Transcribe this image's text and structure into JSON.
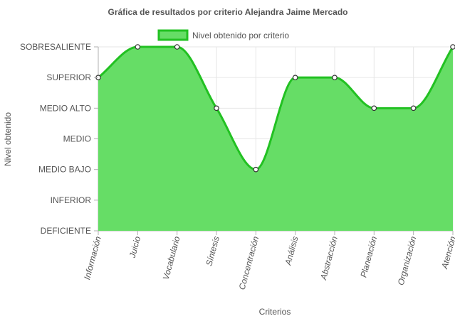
{
  "chart_data": {
    "type": "area",
    "title": "Gráfica de resultados por criterio Alejandra Jaime Mercado",
    "xlabel": "Criterios",
    "ylabel": "Nivel obtenido",
    "y_categories": [
      "DEFICIENTE",
      "INFERIOR",
      "MEDIO BAJO",
      "MEDIO",
      "MEDIO ALTO",
      "SUPERIOR",
      "SOBRESALIENTE"
    ],
    "categories": [
      "Información",
      "Juicio",
      "Vocabulario",
      "Síntesis",
      "Concentración",
      "Análisis",
      "Abstracción",
      "Planeación",
      "Organización",
      "Atención"
    ],
    "series": [
      {
        "name": "Nivel obtenido por criterio",
        "values": [
          "SUPERIOR",
          "SOBRESALIENTE",
          "SOBRESALIENTE",
          "MEDIO ALTO",
          "MEDIO BAJO",
          "SUPERIOR",
          "SUPERIOR",
          "MEDIO ALTO",
          "MEDIO ALTO",
          "SOBRESALIENTE"
        ]
      }
    ],
    "grid": true,
    "legend_position": "top",
    "colors": {
      "fill": "#66dd66",
      "line": "#22c122",
      "point_fill": "#ffffff",
      "point_stroke": "#333333",
      "grid": "#e6e6e6",
      "axis": "#b0b0b0",
      "text": "#555555"
    }
  }
}
